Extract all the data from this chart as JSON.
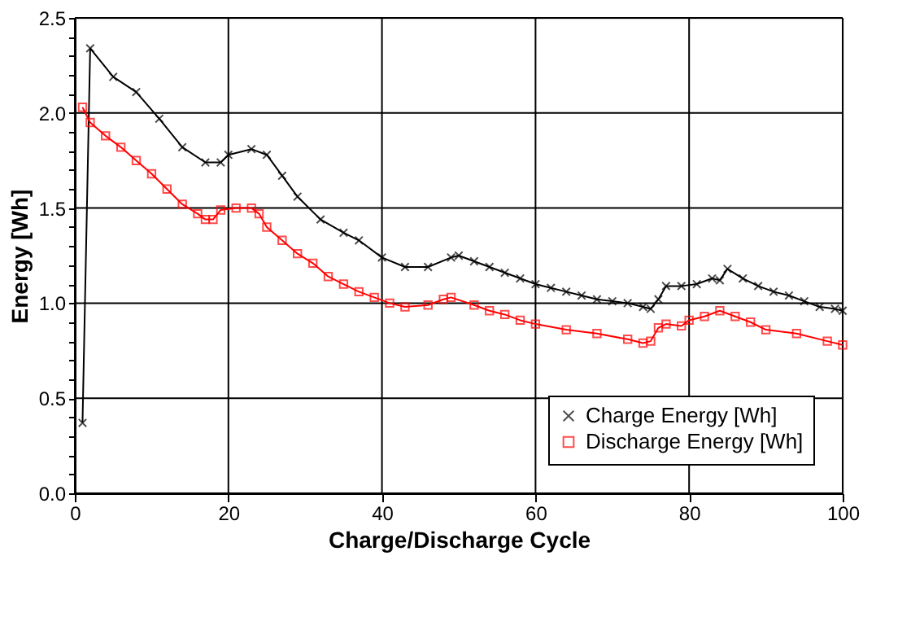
{
  "chart_data": {
    "type": "line",
    "xlabel": "Charge/Discharge Cycle",
    "ylabel": "Energy [Wh]",
    "xlim": [
      0,
      100
    ],
    "xticks": [
      0,
      20,
      40,
      60,
      80,
      100
    ],
    "ylim": [
      0,
      2.5
    ],
    "yticks": [
      {
        "value": 0,
        "label": "0.0"
      },
      {
        "value": 0.1,
        "label": null
      },
      {
        "value": 0.2,
        "label": null
      },
      {
        "value": 0.3,
        "label": null
      },
      {
        "value": 0.4,
        "label": null
      },
      {
        "value": 0.5,
        "label": "0.5"
      },
      {
        "value": 0.6,
        "label": null
      },
      {
        "value": 0.7,
        "label": null
      },
      {
        "value": 0.8,
        "label": null
      },
      {
        "value": 0.9,
        "label": null
      },
      {
        "value": 1.0,
        "label": "1.0"
      },
      {
        "value": 1.1,
        "label": null
      },
      {
        "value": 1.2,
        "label": null
      },
      {
        "value": 1.3,
        "label": null
      },
      {
        "value": 1.4,
        "label": null
      },
      {
        "value": 1.5,
        "label": "1.5"
      },
      {
        "value": 1.6,
        "label": null
      },
      {
        "value": 1.7,
        "label": null
      },
      {
        "value": 1.8,
        "label": null
      },
      {
        "value": 1.9,
        "label": null
      },
      {
        "value": 2.0,
        "label": "2.0"
      },
      {
        "value": 2.1,
        "label": null
      },
      {
        "value": 2.2,
        "label": null
      },
      {
        "value": 2.3,
        "label": null
      },
      {
        "value": 2.4,
        "label": null
      },
      {
        "value": 2.5,
        "label": "2.5"
      }
    ],
    "grid": true,
    "legend": "bottom right",
    "line_style": "solid",
    "series": [
      {
        "name": "Charge Energy [Wh]",
        "color": "#000000",
        "marker": "cross",
        "x": [
          1,
          2,
          5,
          8,
          11,
          14,
          17,
          19,
          20,
          23,
          25,
          27,
          29,
          32,
          35,
          37,
          40,
          43,
          46,
          49,
          50,
          52,
          54,
          56,
          58,
          60,
          62,
          64,
          66,
          68,
          70,
          72,
          74,
          75,
          76,
          77,
          79,
          81,
          83,
          84,
          85,
          87,
          89,
          91,
          93,
          95,
          97,
          99,
          100
        ],
        "values": [
          0.37,
          2.34,
          2.19,
          2.11,
          1.97,
          1.82,
          1.74,
          1.74,
          1.78,
          1.81,
          1.78,
          1.67,
          1.56,
          1.44,
          1.37,
          1.33,
          1.24,
          1.19,
          1.19,
          1.24,
          1.25,
          1.22,
          1.19,
          1.16,
          1.13,
          1.1,
          1.08,
          1.06,
          1.04,
          1.02,
          1.01,
          1.0,
          0.98,
          0.97,
          1.02,
          1.09,
          1.09,
          1.1,
          1.13,
          1.12,
          1.18,
          1.13,
          1.09,
          1.06,
          1.04,
          1.01,
          0.98,
          0.97,
          0.96
        ]
      },
      {
        "name": "Discharge Energy [Wh]",
        "color": "#ff0000",
        "marker": "square",
        "x": [
          1,
          2,
          4,
          6,
          8,
          10,
          12,
          14,
          16,
          17,
          18,
          19,
          21,
          23,
          24,
          25,
          27,
          29,
          31,
          33,
          35,
          37,
          39,
          41,
          43,
          46,
          48,
          49,
          52,
          54,
          56,
          58,
          60,
          64,
          68,
          72,
          74,
          75,
          76,
          77,
          79,
          80,
          82,
          84,
          86,
          88,
          90,
          94,
          98,
          100
        ],
        "values": [
          2.03,
          1.95,
          1.88,
          1.82,
          1.75,
          1.68,
          1.6,
          1.52,
          1.47,
          1.44,
          1.44,
          1.49,
          1.5,
          1.5,
          1.47,
          1.4,
          1.33,
          1.26,
          1.21,
          1.14,
          1.1,
          1.06,
          1.03,
          1.0,
          0.98,
          0.99,
          1.02,
          1.03,
          0.99,
          0.96,
          0.94,
          0.91,
          0.89,
          0.86,
          0.84,
          0.81,
          0.79,
          0.8,
          0.87,
          0.89,
          0.88,
          0.91,
          0.93,
          0.96,
          0.93,
          0.9,
          0.86,
          0.84,
          0.8,
          0.78
        ]
      }
    ]
  }
}
